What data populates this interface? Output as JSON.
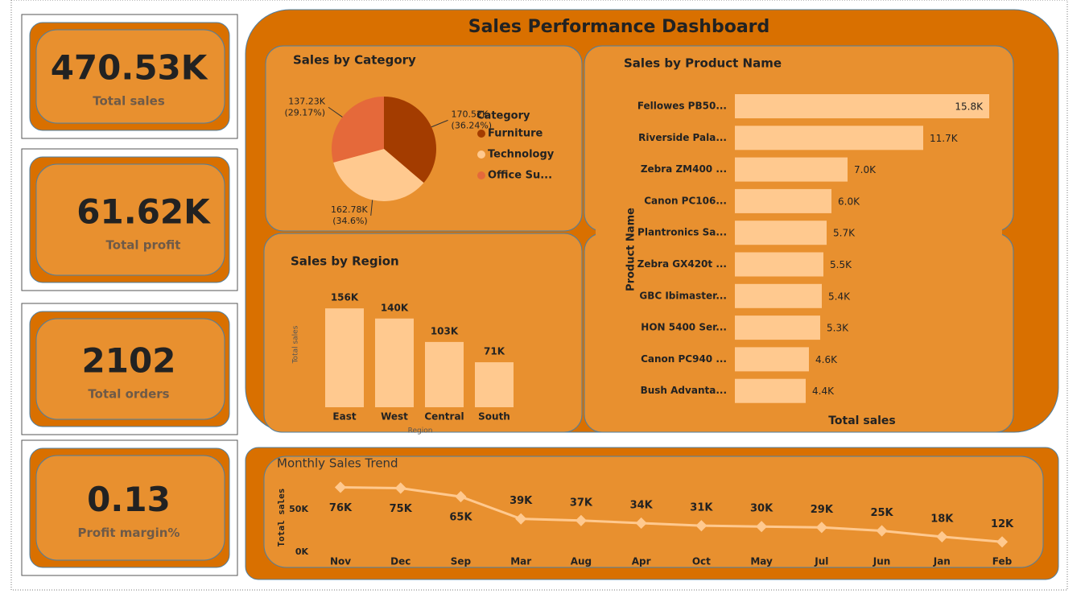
{
  "title": "Sales Performance Dashboard",
  "kpis": [
    {
      "value": "470.53K",
      "label": "Total sales"
    },
    {
      "value": "61.62K",
      "label": "Total profit"
    },
    {
      "value": "2102",
      "label": "Total orders"
    },
    {
      "value": "0.13",
      "label": "Profit margin%"
    }
  ],
  "chart_data": [
    {
      "type": "pie",
      "title": "Sales by Category",
      "legend_title": "Category",
      "categories": [
        "Furniture",
        "Technology",
        "Office Su..."
      ],
      "values": [
        170520,
        162780,
        137230
      ],
      "value_labels": [
        "170.52K",
        "162.78K",
        "137.23K"
      ],
      "percent_labels": [
        "(36.24%)",
        "(34.6%)",
        "(29.17%)"
      ],
      "colors": [
        "#a33c00",
        "#ffc98f",
        "#e5693a"
      ]
    },
    {
      "type": "bar",
      "title": "Sales by Region",
      "y_label": "Total sales",
      "x_label": "Region",
      "categories": [
        "East",
        "West",
        "Central",
        "South"
      ],
      "values": [
        156000,
        140000,
        103000,
        71000
      ],
      "value_labels": [
        "156K",
        "140K",
        "103K",
        "71K"
      ],
      "color": "#ffc98f",
      "ylim": [
        0,
        160000
      ]
    },
    {
      "type": "bar",
      "orientation": "horizontal",
      "title": "Sales by Product Name",
      "x_label": "Total sales",
      "y_label": "Product Name",
      "categories": [
        "Fellowes PB50...",
        "Riverside Pala...",
        "Zebra ZM400 ...",
        "Canon PC106...",
        "Plantronics Sa...",
        "Zebra GX420t ...",
        "GBC Ibimaster...",
        "HON 5400 Ser...",
        "Canon PC940 ...",
        "Bush Advanta..."
      ],
      "values": [
        15800,
        11700,
        7000,
        6000,
        5700,
        5500,
        5400,
        5300,
        4600,
        4400
      ],
      "value_labels": [
        "15.8K",
        "11.7K",
        "7.0K",
        "6.0K",
        "5.7K",
        "5.5K",
        "5.4K",
        "5.3K",
        "4.6K",
        "4.4K"
      ],
      "color": "#ffc98f",
      "xlim": [
        0,
        16000
      ]
    },
    {
      "type": "line",
      "title": "Monthly Sales Trend",
      "y_label": "Total sales",
      "categories": [
        "Nov",
        "Dec",
        "Sep",
        "Mar",
        "Aug",
        "Apr",
        "Oct",
        "May",
        "Jul",
        "Jun",
        "Jan",
        "Feb"
      ],
      "values": [
        76000,
        75000,
        65000,
        39000,
        37000,
        34000,
        31000,
        30000,
        29000,
        25000,
        18000,
        12000
      ],
      "value_labels": [
        "76K",
        "75K",
        "65K",
        "39K",
        "37K",
        "34K",
        "31K",
        "30K",
        "29K",
        "25K",
        "18K",
        "12K"
      ],
      "color": "#ffc98f",
      "ylim": [
        0,
        80000
      ],
      "yticks": [
        {
          "value": 0,
          "label": "0K"
        },
        {
          "value": 50000,
          "label": "50K"
        }
      ]
    }
  ]
}
